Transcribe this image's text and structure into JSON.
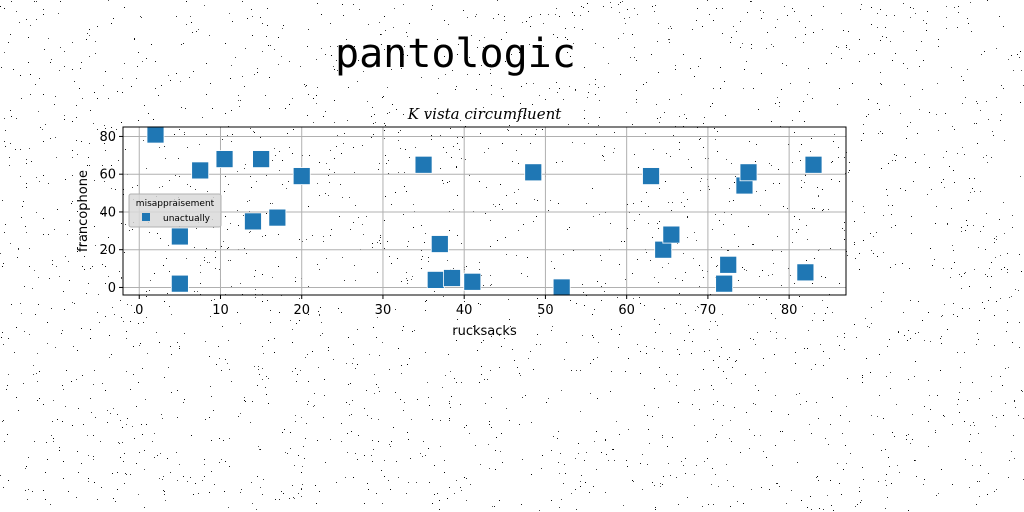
{
  "page": {
    "heading": "pantologic"
  },
  "chart_data": {
    "type": "scatter",
    "title": "K vista circumfluent",
    "xlabel": "rucksacks",
    "ylabel": "francophone",
    "xlim": [
      -2,
      87
    ],
    "ylim": [
      -4,
      85
    ],
    "xticks": [
      0,
      10,
      20,
      30,
      40,
      50,
      60,
      70,
      80
    ],
    "yticks": [
      0,
      20,
      40,
      60,
      80
    ],
    "grid": true,
    "legend": {
      "title": "misappraisement",
      "placement": "center-left"
    },
    "marker": "square",
    "series": [
      {
        "name": "unactually",
        "color": "#1f77b4",
        "x": [
          2,
          5,
          5,
          7.5,
          10.5,
          14,
          15,
          17,
          20,
          35,
          36.5,
          37,
          38.5,
          41,
          48.5,
          52,
          63,
          64.5,
          65.5,
          72,
          72.5,
          74.5,
          75,
          82,
          83
        ],
        "y": [
          81,
          27,
          2,
          62,
          68,
          35,
          68,
          37,
          59,
          65,
          4,
          23,
          5,
          3,
          61,
          0,
          59,
          20,
          28,
          2,
          12,
          54,
          61,
          8,
          65
        ]
      }
    ]
  }
}
